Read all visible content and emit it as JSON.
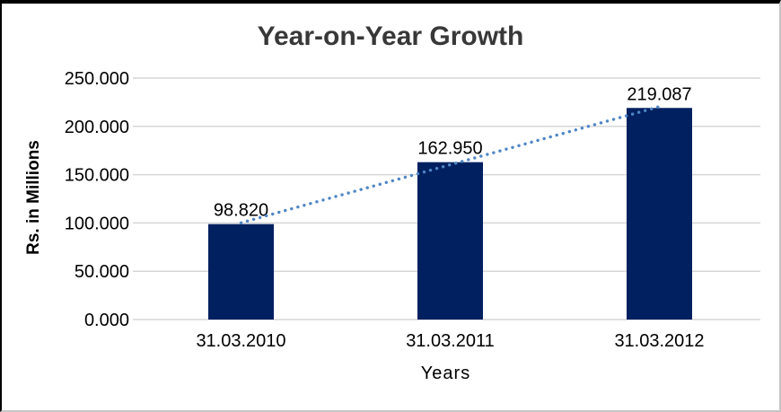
{
  "chart_data": {
    "type": "bar",
    "title": "Year-on-Year Growth",
    "xlabel": "Years",
    "ylabel": "Rs. in Millions",
    "categories": [
      "31.03.2010",
      "31.03.2011",
      "31.03.2012"
    ],
    "values": [
      98.82,
      162.95,
      219.087
    ],
    "data_labels": [
      "98.820",
      "162.950",
      "219.087"
    ],
    "ylim": [
      0,
      250
    ],
    "ytick_values": [
      0,
      50,
      100,
      150,
      200,
      250
    ],
    "ytick_labels": [
      "0.000",
      "50.000",
      "100.000",
      "150.000",
      "200.000",
      "250.000"
    ],
    "grid": true,
    "legend": "none",
    "trendline": "linear-dotted",
    "colors": {
      "bar": "#002060",
      "trendline": "#4F86C6",
      "gridline": "#D6D6D6",
      "label_text": "#000000",
      "title_text": "#383838"
    }
  }
}
